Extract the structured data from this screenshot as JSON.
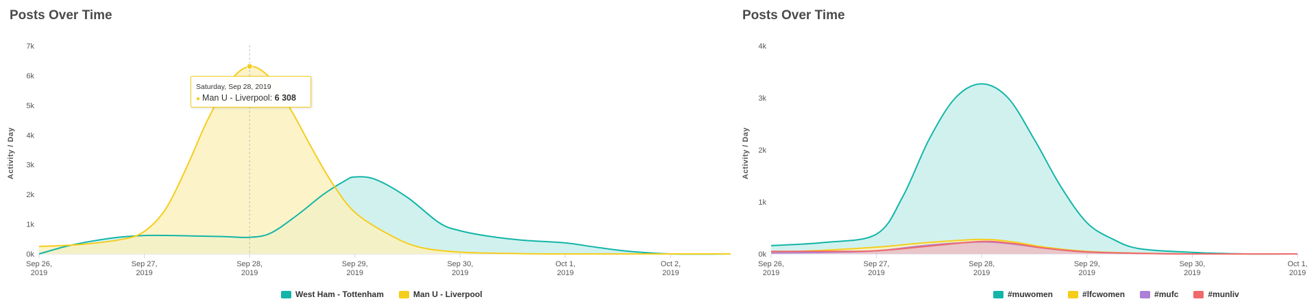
{
  "chart_data": [
    {
      "type": "area",
      "title": "Posts Over Time",
      "ylabel": "Activity / Day",
      "ylim": [
        0,
        7000
      ],
      "y_ticks": [
        0,
        1000,
        2000,
        3000,
        4000,
        5000,
        6000,
        7000
      ],
      "y_tick_labels": [
        "0k",
        "1k",
        "2k",
        "3k",
        "4k",
        "5k",
        "6k",
        "7k"
      ],
      "xlim": [
        0,
        6.57
      ],
      "x_ticks": [
        0,
        1,
        2,
        3,
        4,
        5,
        6
      ],
      "x_tick_labels": [
        [
          "Sep 26,",
          "2019"
        ],
        [
          "Sep 27,",
          "2019"
        ],
        [
          "Sep 28,",
          "2019"
        ],
        [
          "Sep 29,",
          "2019"
        ],
        [
          "Sep 30,",
          "2019"
        ],
        [
          "Oct 1,",
          "2019"
        ],
        [
          "Oct 2,",
          "2019"
        ]
      ],
      "series": [
        {
          "name": "West Ham - Tottenham",
          "color": "#12b5a7",
          "fill": "#c9efec",
          "points": [
            [
              0,
              0
            ],
            [
              0.25,
              250
            ],
            [
              0.5,
              430
            ],
            [
              0.75,
              560
            ],
            [
              1,
              620
            ],
            [
              1.25,
              620
            ],
            [
              1.5,
              600
            ],
            [
              1.75,
              585
            ],
            [
              2,
              560
            ],
            [
              2.2,
              700
            ],
            [
              2.45,
              1300
            ],
            [
              2.7,
              2000
            ],
            [
              2.9,
              2450
            ],
            [
              3,
              2590
            ],
            [
              3.2,
              2500
            ],
            [
              3.5,
              1900
            ],
            [
              3.8,
              1050
            ],
            [
              4,
              780
            ],
            [
              4.3,
              580
            ],
            [
              4.6,
              460
            ],
            [
              5,
              370
            ],
            [
              5.3,
              220
            ],
            [
              5.6,
              90
            ],
            [
              6,
              0
            ],
            [
              6.57,
              0
            ]
          ]
        },
        {
          "name": "Man U - Liverpool",
          "color": "#f5cd1b",
          "fill": "#fcf1c0",
          "points": [
            [
              0,
              250
            ],
            [
              0.4,
              320
            ],
            [
              0.8,
              500
            ],
            [
              1,
              760
            ],
            [
              1.2,
              1500
            ],
            [
              1.4,
              2900
            ],
            [
              1.6,
              4500
            ],
            [
              1.8,
              5750
            ],
            [
              2,
              6308
            ],
            [
              2.2,
              5900
            ],
            [
              2.4,
              4800
            ],
            [
              2.6,
              3500
            ],
            [
              2.8,
              2300
            ],
            [
              3,
              1400
            ],
            [
              3.3,
              700
            ],
            [
              3.6,
              240
            ],
            [
              4,
              60
            ],
            [
              4.5,
              15
            ],
            [
              5,
              0
            ],
            [
              6.57,
              0
            ]
          ]
        }
      ],
      "tooltip": {
        "date": "Saturday, Sep 28, 2019",
        "series": "Man U - Liverpool",
        "series_label": "Man U - Liverpool: ",
        "x": 2,
        "value": 6308,
        "value_label": "6 308"
      }
    },
    {
      "type": "area",
      "title": "Posts Over Time",
      "ylabel": "Activity / Day",
      "ylim": [
        0,
        4000
      ],
      "y_ticks": [
        0,
        1000,
        2000,
        3000,
        4000
      ],
      "y_tick_labels": [
        "0k",
        "1k",
        "2k",
        "3k",
        "4k"
      ],
      "xlim": [
        0,
        5
      ],
      "x_ticks": [
        0,
        1,
        2,
        3,
        4,
        5
      ],
      "x_tick_labels": [
        [
          "Sep 26,",
          "2019"
        ],
        [
          "Sep 27,",
          "2019"
        ],
        [
          "Sep 28,",
          "2019"
        ],
        [
          "Sep 29,",
          "2019"
        ],
        [
          "Sep 30,",
          "2019"
        ],
        [
          "Oct 1,",
          "2019"
        ]
      ],
      "series": [
        {
          "name": "#muwomen",
          "color": "#12b5a7",
          "fill": "#c9efec",
          "points": [
            [
              0,
              160
            ],
            [
              0.5,
              220
            ],
            [
              1,
              380
            ],
            [
              1.25,
              1100
            ],
            [
              1.5,
              2200
            ],
            [
              1.75,
              3000
            ],
            [
              2,
              3270
            ],
            [
              2.25,
              3000
            ],
            [
              2.5,
              2200
            ],
            [
              2.75,
              1300
            ],
            [
              3,
              600
            ],
            [
              3.25,
              280
            ],
            [
              3.5,
              100
            ],
            [
              4,
              30
            ],
            [
              4.5,
              0
            ],
            [
              5,
              0
            ]
          ]
        },
        {
          "name": "#lfcwomen",
          "color": "#f5cd1b",
          "fill": "#fcf1c0",
          "points": [
            [
              0,
              30
            ],
            [
              0.5,
              70
            ],
            [
              1,
              130
            ],
            [
              1.5,
              220
            ],
            [
              2,
              280
            ],
            [
              2.3,
              230
            ],
            [
              2.6,
              130
            ],
            [
              3,
              50
            ],
            [
              3.5,
              15
            ],
            [
              4,
              0
            ],
            [
              5,
              0
            ]
          ]
        },
        {
          "name": "#mufc",
          "color": "#ad7fd8",
          "fill": "#e5d8f3",
          "points": [
            [
              0,
              20
            ],
            [
              0.5,
              30
            ],
            [
              1,
              60
            ],
            [
              1.5,
              170
            ],
            [
              2,
              230
            ],
            [
              2.3,
              190
            ],
            [
              2.6,
              110
            ],
            [
              3,
              40
            ],
            [
              3.5,
              10
            ],
            [
              4,
              0
            ],
            [
              5,
              0
            ]
          ]
        },
        {
          "name": "#munliv",
          "color": "#f0696b",
          "fill": "#e8c2c2",
          "points": [
            [
              0,
              50
            ],
            [
              0.5,
              50
            ],
            [
              1,
              60
            ],
            [
              1.5,
              150
            ],
            [
              2,
              240
            ],
            [
              2.3,
              200
            ],
            [
              2.6,
              110
            ],
            [
              3,
              35
            ],
            [
              3.5,
              10
            ],
            [
              4,
              0
            ],
            [
              5,
              0
            ]
          ]
        }
      ]
    }
  ]
}
